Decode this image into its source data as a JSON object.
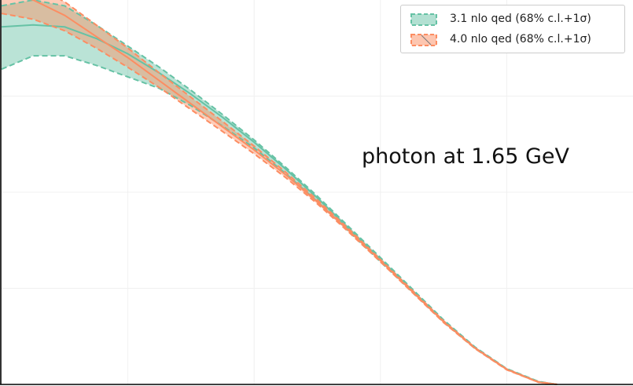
{
  "chart_data": {
    "type": "line",
    "title": "",
    "xlabel": "",
    "ylabel": "",
    "annotation": "photon at 1.65 GeV",
    "grid": true,
    "legend_position": "top-right",
    "colors": {
      "series1": "#66c2a5",
      "series2": "#fc8d62"
    },
    "series": [
      {
        "name": "3.1 nlo qed (68% c.l.+1σ)",
        "x": [
          0.0,
          0.05,
          0.1,
          0.15,
          0.2,
          0.25,
          0.3,
          0.35,
          0.4,
          0.45,
          0.5,
          0.55,
          0.6,
          0.65,
          0.7,
          0.75,
          0.8,
          0.85,
          0.88
        ],
        "central": [
          0.93,
          0.935,
          0.93,
          0.9,
          0.86,
          0.81,
          0.755,
          0.695,
          0.63,
          0.56,
          0.485,
          0.405,
          0.325,
          0.245,
          0.165,
          0.095,
          0.04,
          0.007,
          0.0
        ],
        "upper": [
          0.985,
          1.0,
          0.985,
          0.935,
          0.88,
          0.825,
          0.765,
          0.702,
          0.636,
          0.565,
          0.49,
          0.41,
          0.33,
          0.249,
          0.168,
          0.097,
          0.041,
          0.008,
          0.0
        ],
        "lower": [
          0.82,
          0.855,
          0.855,
          0.83,
          0.8,
          0.77,
          0.725,
          0.672,
          0.615,
          0.548,
          0.476,
          0.398,
          0.319,
          0.241,
          0.162,
          0.093,
          0.039,
          0.006,
          0.0
        ]
      },
      {
        "name": "4.0 nlo qed (68% c.l.+1σ)",
        "x": [
          0.0,
          0.05,
          0.1,
          0.15,
          0.2,
          0.25,
          0.3,
          0.35,
          0.4,
          0.45,
          0.5,
          0.55,
          0.6,
          0.65,
          0.7,
          0.75,
          0.8,
          0.85,
          0.88
        ],
        "central": [
          1.02,
          1.0,
          0.96,
          0.905,
          0.85,
          0.79,
          0.73,
          0.67,
          0.61,
          0.545,
          0.475,
          0.4,
          0.322,
          0.242,
          0.163,
          0.094,
          0.039,
          0.006,
          0.0
        ],
        "upper": [
          1.06,
          1.04,
          0.995,
          0.935,
          0.875,
          0.81,
          0.747,
          0.684,
          0.62,
          0.552,
          0.48,
          0.404,
          0.325,
          0.245,
          0.165,
          0.095,
          0.04,
          0.007,
          0.0
        ],
        "lower": [
          0.965,
          0.95,
          0.92,
          0.875,
          0.825,
          0.772,
          0.715,
          0.658,
          0.6,
          0.538,
          0.47,
          0.396,
          0.319,
          0.24,
          0.161,
          0.093,
          0.038,
          0.006,
          0.0
        ]
      }
    ]
  }
}
